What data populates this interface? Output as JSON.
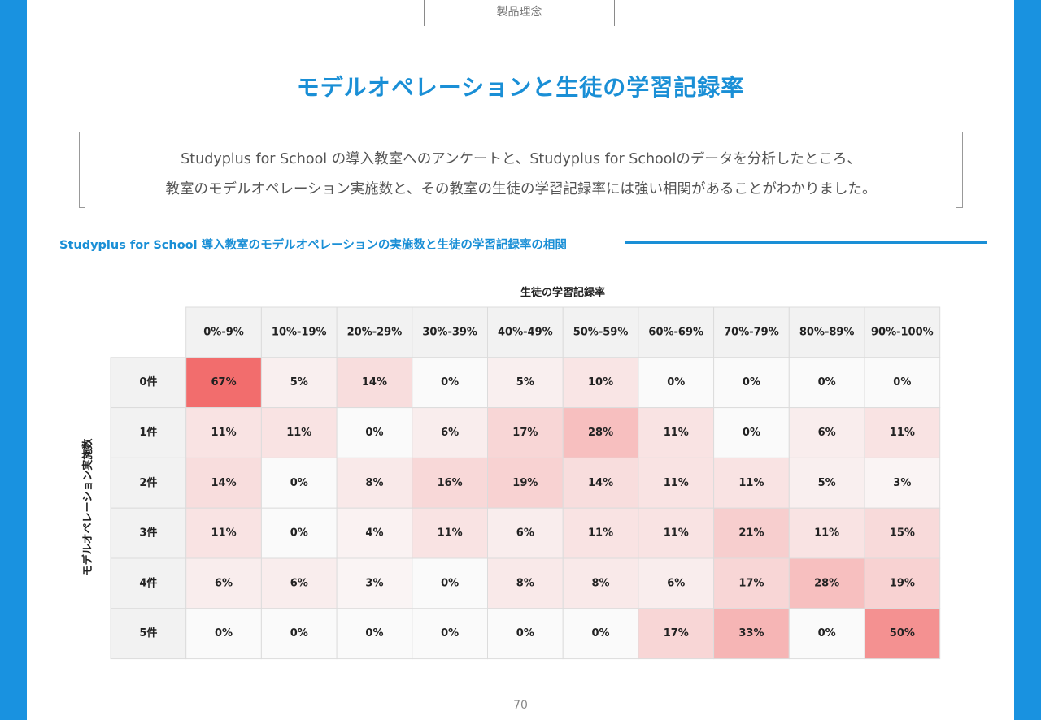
{
  "page": {
    "section_label": "製品理念",
    "title": "モデルオペレーションと生徒の学習記録率",
    "description_line1": "Studyplus for School の導入教室へのアンケートと、Studyplus for Schoolのデータを分析したところ、",
    "description_line2": "教室のモデルオペレーション実施数と、その教室の生徒の学習記録率には強い相関があることがわかりました。",
    "subheading": "Studyplus for School 導入教室のモデルオペレーションの実施数と生徒の学習記録率の相関",
    "page_number": "70"
  },
  "colors": {
    "accent": "#1a8fd6",
    "side_bars": "#1992e0",
    "heat_low": "#fafafa",
    "heat_high": "#f26d6d",
    "header_cell": "#f2f2f2"
  },
  "chart_data": {
    "type": "heatmap",
    "xlabel": "生徒の学習記録率",
    "ylabel": "モデルオペレーション実施数",
    "x_categories": [
      "0%-9%",
      "10%-19%",
      "20%-29%",
      "30%-39%",
      "40%-49%",
      "50%-59%",
      "60%-69%",
      "70%-79%",
      "80%-89%",
      "90%-100%"
    ],
    "y_categories": [
      "0件",
      "1件",
      "2件",
      "3件",
      "4件",
      "5件"
    ],
    "values": [
      [
        67,
        5,
        14,
        0,
        5,
        10,
        0,
        0,
        0,
        0
      ],
      [
        11,
        11,
        0,
        6,
        17,
        28,
        11,
        0,
        6,
        11
      ],
      [
        14,
        0,
        8,
        16,
        19,
        14,
        11,
        11,
        5,
        3
      ],
      [
        11,
        0,
        4,
        11,
        6,
        11,
        11,
        21,
        11,
        15
      ],
      [
        6,
        6,
        3,
        0,
        8,
        8,
        6,
        17,
        28,
        19
      ],
      [
        0,
        0,
        0,
        0,
        0,
        0,
        17,
        33,
        0,
        50
      ]
    ],
    "value_suffix": "%"
  }
}
